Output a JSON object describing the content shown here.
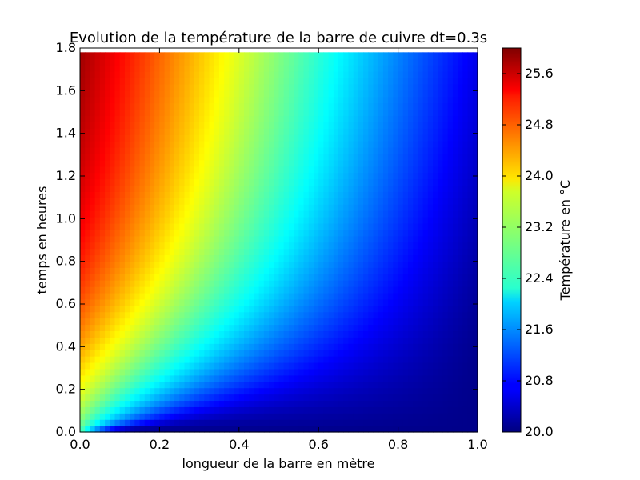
{
  "chart_data": {
    "type": "heatmap",
    "title": "Evolution de la température de la barre de cuivre dt=0.3s",
    "xlabel": "longueur de la barre en mètre",
    "ylabel": "temps en heures",
    "xlim": [
      0.0,
      1.0
    ],
    "ylim": [
      0.0,
      1.8
    ],
    "x_ticks": [
      "0.0",
      "0.2",
      "0.4",
      "0.6",
      "0.8",
      "1.0"
    ],
    "y_ticks": [
      "0.0",
      "0.2",
      "0.4",
      "0.6",
      "0.8",
      "1.0",
      "1.2",
      "1.4",
      "1.6",
      "1.8"
    ],
    "colormap": "jet",
    "value_range": [
      20.0,
      26.0
    ],
    "t_max_data": 1.78,
    "colorbar": {
      "label": "Température en °C",
      "ticks": [
        "20.0",
        "20.8",
        "21.6",
        "22.4",
        "23.2",
        "24.0",
        "24.8",
        "25.6"
      ]
    },
    "grid": false
  }
}
